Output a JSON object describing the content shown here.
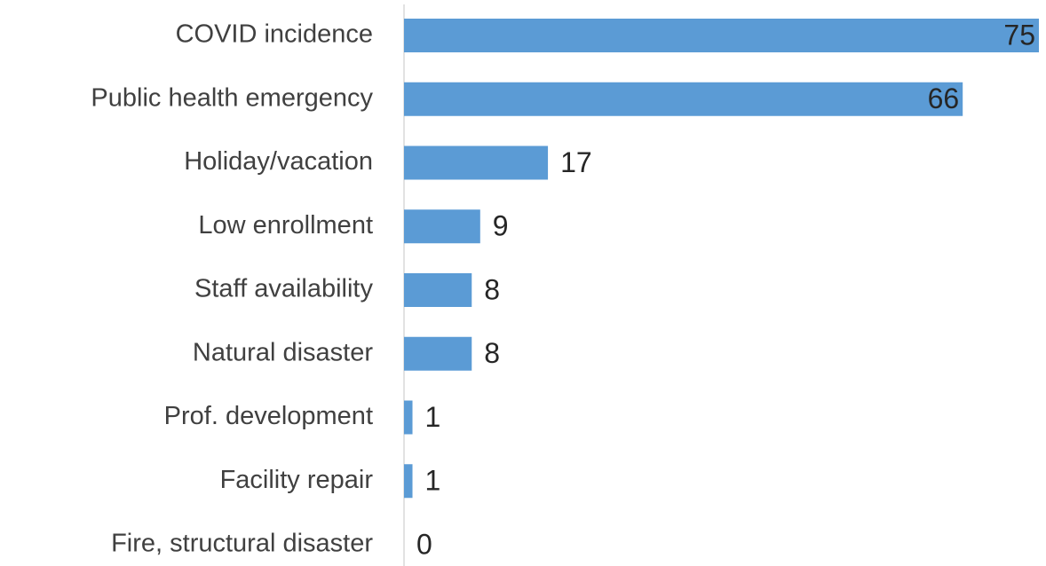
{
  "chart_data": {
    "type": "bar",
    "orientation": "horizontal",
    "categories": [
      "COVID incidence",
      "Public health emergency",
      "Holiday/vacation",
      "Low enrollment",
      "Staff availability",
      "Natural disaster",
      "Prof. development",
      "Facility repair",
      "Fire, structural disaster"
    ],
    "values": [
      75,
      66,
      17,
      9,
      8,
      8,
      1,
      1,
      0
    ],
    "color": "#5b9bd5",
    "grid": false
  }
}
